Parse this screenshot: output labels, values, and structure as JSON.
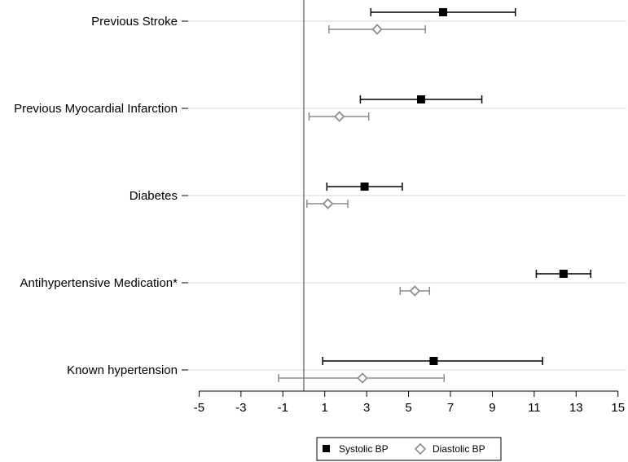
{
  "chart_data": {
    "type": "forest",
    "title": "",
    "xlabel": "",
    "ylabel": "",
    "xlim": [
      -5.6,
      15.4
    ],
    "x_ticks": [
      -5,
      -3,
      -1,
      1,
      3,
      5,
      7,
      9,
      11,
      13,
      15
    ],
    "reference_line_x": 0,
    "categories": [
      "Previous Stroke",
      "Previous Myocardial Infarction",
      "Diabetes",
      "Antihypertensive Medication*",
      "Known hypertension"
    ],
    "series": [
      {
        "name": "Systolic BP",
        "color": "#000000",
        "marker": "filled-square",
        "points": [
          {
            "est": 6.65,
            "lo": 3.2,
            "hi": 10.1
          },
          {
            "est": 5.6,
            "lo": 2.7,
            "hi": 8.5
          },
          {
            "est": 2.9,
            "lo": 1.1,
            "hi": 4.7
          },
          {
            "est": 12.4,
            "lo": 11.1,
            "hi": 13.7
          },
          {
            "est": 6.2,
            "lo": 0.9,
            "hi": 11.4
          }
        ]
      },
      {
        "name": "Diastolic BP",
        "color": "#8c8c8c",
        "marker": "hollow-diamond",
        "points": [
          {
            "est": 3.5,
            "lo": 1.2,
            "hi": 5.8
          },
          {
            "est": 1.7,
            "lo": 0.25,
            "hi": 3.1
          },
          {
            "est": 1.15,
            "lo": 0.15,
            "hi": 2.1
          },
          {
            "est": 5.3,
            "lo": 4.6,
            "hi": 6.0
          },
          {
            "est": 2.8,
            "lo": -1.2,
            "hi": 6.7
          }
        ]
      }
    ],
    "legend": {
      "position": "bottom",
      "entries": [
        "Systolic BP",
        "Diastolic BP"
      ]
    },
    "grid": "horizontal"
  }
}
